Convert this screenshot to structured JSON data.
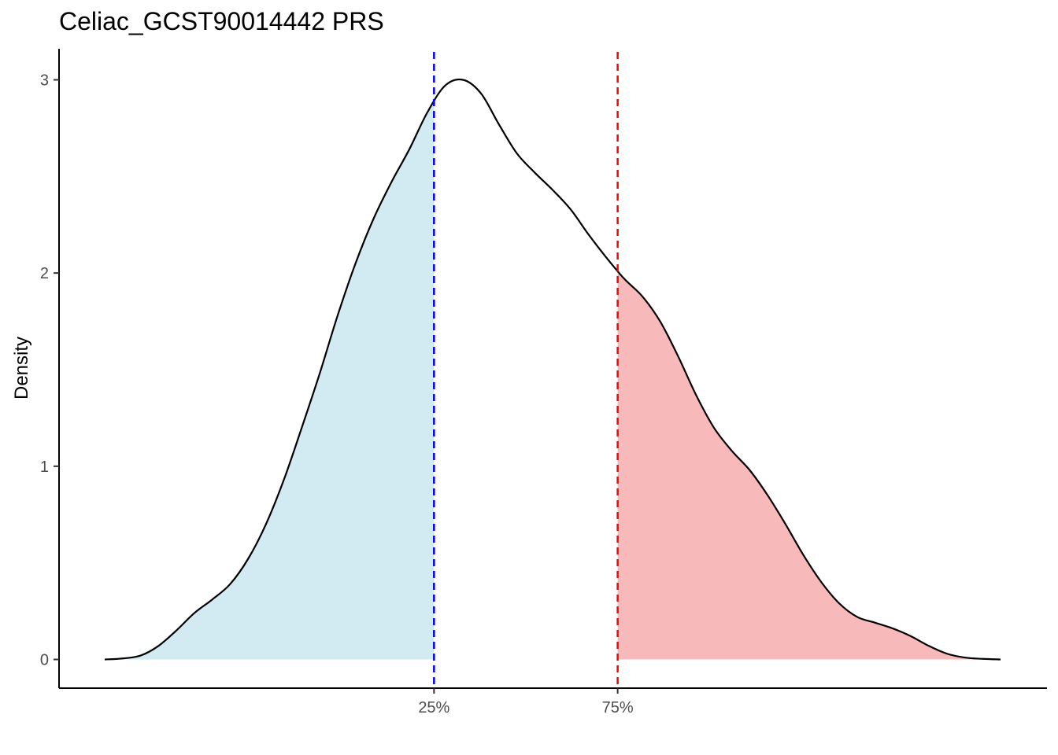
{
  "chart_data": {
    "type": "area",
    "title": "Celiac_GCST90014442 PRS",
    "xlabel": "",
    "ylabel": "Density",
    "ylim": [
      -0.15,
      3.15
    ],
    "y_ticks": [
      0,
      1,
      2,
      3
    ],
    "grid": false,
    "legend": "none",
    "x_tick_labels": [
      "25%",
      "75%"
    ],
    "density": {
      "color": "#000000",
      "points": [
        [
          0.0,
          0.0
        ],
        [
          0.02,
          0.005
        ],
        [
          0.04,
          0.02
        ],
        [
          0.06,
          0.07
        ],
        [
          0.08,
          0.15
        ],
        [
          0.1,
          0.24
        ],
        [
          0.12,
          0.31
        ],
        [
          0.14,
          0.39
        ],
        [
          0.16,
          0.52
        ],
        [
          0.18,
          0.7
        ],
        [
          0.2,
          0.93
        ],
        [
          0.22,
          1.2
        ],
        [
          0.24,
          1.48
        ],
        [
          0.26,
          1.78
        ],
        [
          0.28,
          2.05
        ],
        [
          0.3,
          2.28
        ],
        [
          0.32,
          2.47
        ],
        [
          0.34,
          2.64
        ],
        [
          0.36,
          2.83
        ],
        [
          0.38,
          2.97
        ],
        [
          0.4,
          3.0
        ],
        [
          0.42,
          2.93
        ],
        [
          0.44,
          2.77
        ],
        [
          0.46,
          2.62
        ],
        [
          0.48,
          2.52
        ],
        [
          0.5,
          2.43
        ],
        [
          0.52,
          2.33
        ],
        [
          0.54,
          2.2
        ],
        [
          0.56,
          2.08
        ],
        [
          0.58,
          1.97
        ],
        [
          0.6,
          1.88
        ],
        [
          0.62,
          1.75
        ],
        [
          0.64,
          1.57
        ],
        [
          0.66,
          1.37
        ],
        [
          0.68,
          1.2
        ],
        [
          0.7,
          1.08
        ],
        [
          0.72,
          0.98
        ],
        [
          0.74,
          0.85
        ],
        [
          0.76,
          0.7
        ],
        [
          0.78,
          0.54
        ],
        [
          0.8,
          0.4
        ],
        [
          0.82,
          0.29
        ],
        [
          0.84,
          0.22
        ],
        [
          0.86,
          0.19
        ],
        [
          0.88,
          0.16
        ],
        [
          0.9,
          0.12
        ],
        [
          0.92,
          0.07
        ],
        [
          0.94,
          0.03
        ],
        [
          0.96,
          0.01
        ],
        [
          0.98,
          0.003
        ],
        [
          1.0,
          0.0
        ]
      ]
    },
    "thresholds": [
      {
        "label": "25%",
        "x": 0.3676,
        "color": "#0000ff",
        "style": "dashed"
      },
      {
        "label": "75%",
        "x": 0.5726,
        "color": "#ff0000",
        "style": "dashed"
      }
    ],
    "regions": [
      {
        "name": "lower",
        "from": 0.0,
        "to": 0.3676,
        "fill": "#add8e6",
        "opacity": 0.55
      },
      {
        "name": "upper",
        "from": 0.5726,
        "to": 1.0,
        "fill": "#f08080",
        "opacity": 0.55
      }
    ]
  }
}
